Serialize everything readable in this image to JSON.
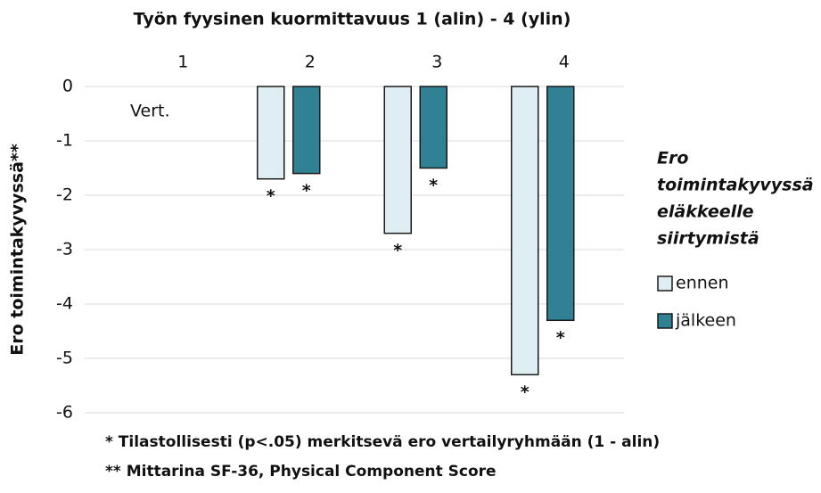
{
  "chart_data": {
    "type": "bar",
    "title": "Työn fyysinen kuormittavuus 1 (alin) - 4 (ylin)",
    "y_label": "Ero toimintakyvyssä**",
    "categories": [
      "1",
      "2",
      "3",
      "4"
    ],
    "annotation": "Vert.",
    "series": [
      {
        "name": "ennen",
        "color": "#deeef3",
        "values": [
          null,
          -1.7,
          -2.7,
          -5.3
        ],
        "markers": [
          null,
          "*",
          "*",
          "*"
        ]
      },
      {
        "name": "jälkeen",
        "color": "#2f8193",
        "values": [
          null,
          -1.6,
          -1.5,
          -4.3
        ],
        "markers": [
          null,
          "*",
          "*",
          "*"
        ]
      }
    ],
    "legend_title": [
      "Ero",
      "toimintakyvyssä",
      "eläkkeelle",
      "siirtymistä"
    ],
    "ylim": [
      -6,
      0
    ],
    "yticks": [
      0,
      -1,
      -2,
      -3,
      -4,
      -5,
      -6
    ],
    "grid": true,
    "footnotes": [
      "* Tilastollisesti (p<.05) merkitsevä ero vertailyryhmään (1 - alin)",
      "** Mittarina SF-36, Physical Component Score"
    ]
  }
}
